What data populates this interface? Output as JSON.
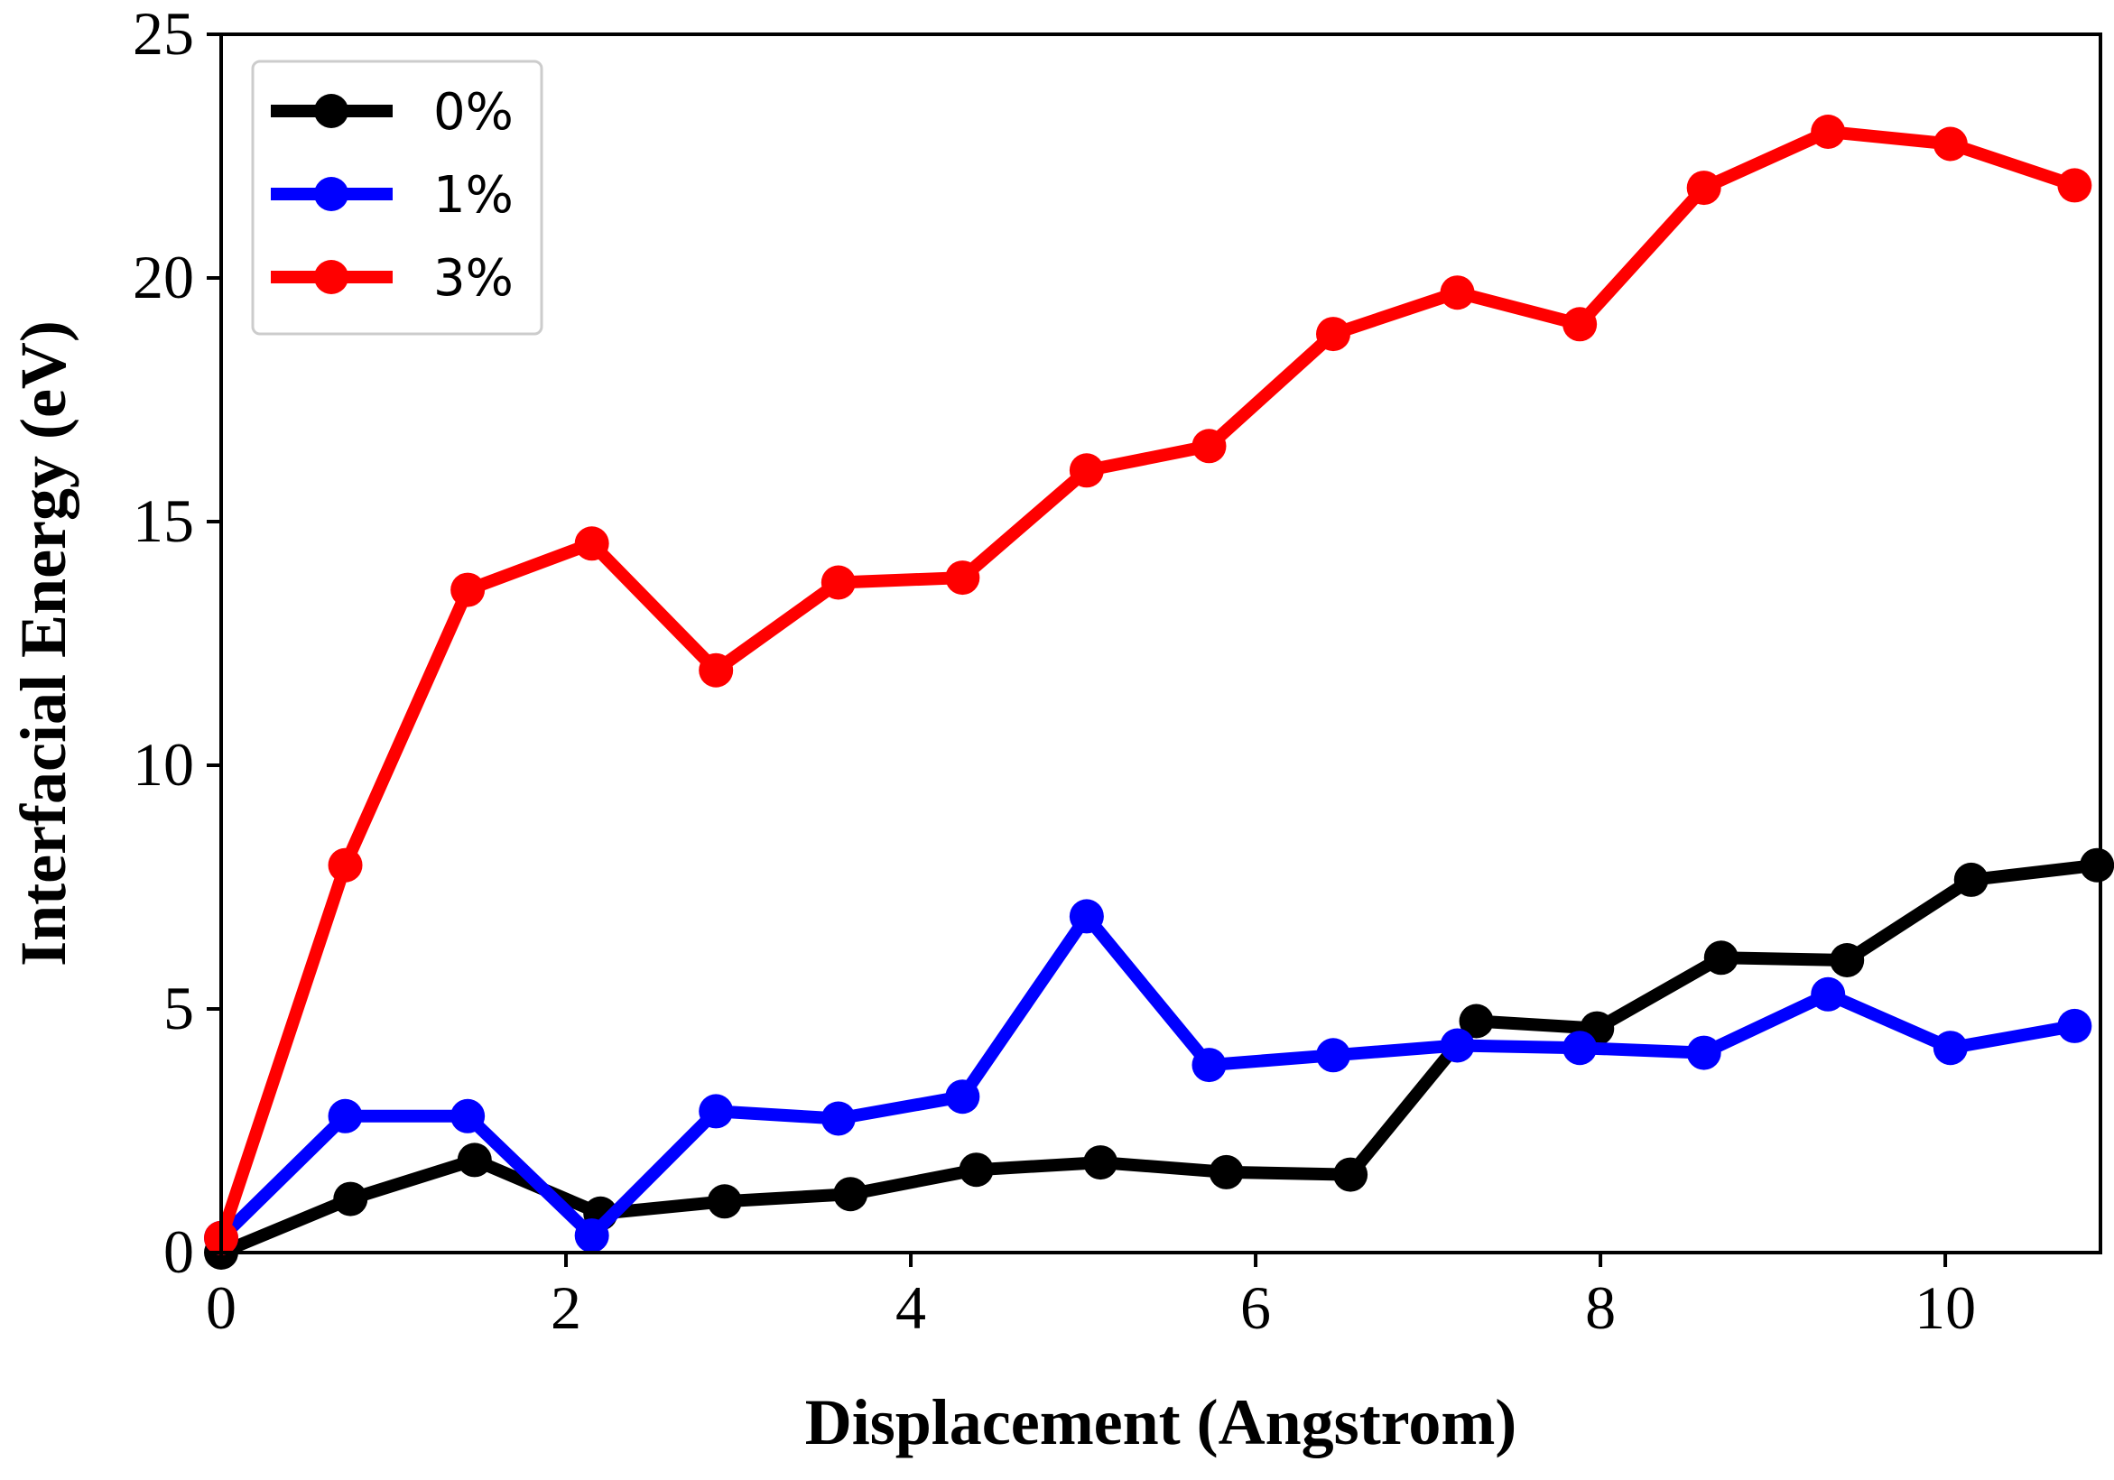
{
  "chart_data": {
    "type": "line",
    "title": "",
    "xlabel": "Displacement (Angstrom)",
    "ylabel": "Interfacial Energy (eV)",
    "xlim": [
      0,
      10.9
    ],
    "ylim": [
      0,
      25
    ],
    "xticks": [
      0,
      2,
      4,
      6,
      8,
      10
    ],
    "yticks": [
      0,
      5,
      10,
      15,
      20,
      25
    ],
    "legend_position": "top-left",
    "series": [
      {
        "name": "0%",
        "color": "#000000",
        "x": [
          0.0,
          0.75,
          1.47,
          2.2,
          2.92,
          3.65,
          4.38,
          5.1,
          5.83,
          6.55,
          7.28,
          7.98,
          8.7,
          9.43,
          10.15,
          10.88
        ],
        "y": [
          0.0,
          1.1,
          1.9,
          0.8,
          1.05,
          1.2,
          1.7,
          1.85,
          1.65,
          1.6,
          4.75,
          4.6,
          6.05,
          6.0,
          7.65,
          7.95
        ]
      },
      {
        "name": "1%",
        "color": "#0000ff",
        "x": [
          0.0,
          0.72,
          1.43,
          2.15,
          2.87,
          3.58,
          4.3,
          5.02,
          5.73,
          6.45,
          7.17,
          7.88,
          8.6,
          9.32,
          10.03,
          10.75
        ],
        "y": [
          0.3,
          2.8,
          2.8,
          0.35,
          2.9,
          2.75,
          3.2,
          6.9,
          3.85,
          4.05,
          4.25,
          4.2,
          4.1,
          5.3,
          4.2,
          4.65
        ]
      },
      {
        "name": "3%",
        "color": "#ff0000",
        "x": [
          0.0,
          0.72,
          1.43,
          2.15,
          2.87,
          3.58,
          4.3,
          5.02,
          5.73,
          6.45,
          7.17,
          7.88,
          8.6,
          9.32,
          10.03,
          10.75
        ],
        "y": [
          0.3,
          7.95,
          13.6,
          14.55,
          11.95,
          13.75,
          13.85,
          16.05,
          16.55,
          18.85,
          19.7,
          19.05,
          21.85,
          23.0,
          22.75,
          21.9
        ]
      }
    ]
  }
}
